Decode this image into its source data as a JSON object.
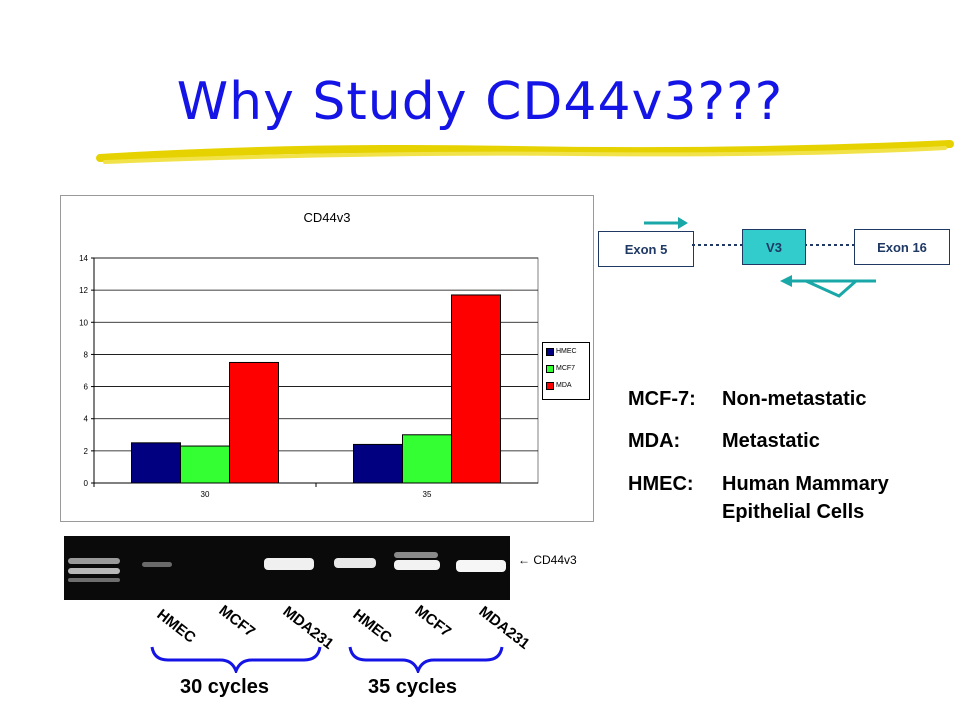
{
  "slide": {
    "title": "Why Study CD44v3???"
  },
  "chart_data": {
    "type": "bar",
    "title": "CD44v3",
    "categories": [
      "30",
      "35"
    ],
    "series": [
      {
        "name": "HMEC",
        "values": [
          2.5,
          2.4
        ],
        "color": "#000080"
      },
      {
        "name": "MCF7",
        "values": [
          2.3,
          3.0
        ],
        "color": "#33ff33"
      },
      {
        "name": "MDA",
        "values": [
          7.5,
          11.7
        ],
        "color": "#ff0000"
      }
    ],
    "ylim": [
      0,
      14
    ],
    "yticks": [
      "0",
      "2",
      "4",
      "6",
      "8",
      "10",
      "12",
      "14"
    ],
    "grid": true,
    "legend": "right"
  },
  "diagram": {
    "exon5": "Exon 5",
    "v3": "V3",
    "exon16": "Exon 16"
  },
  "key": [
    {
      "term": "MCF-7:",
      "desc": "Non-metastatic"
    },
    {
      "term": "MDA:",
      "desc": "Metastatic"
    },
    {
      "term": "HMEC:",
      "desc": "Human Mammary"
    },
    {
      "term": "",
      "desc": "Epithelial Cells"
    }
  ],
  "gel": {
    "marker": "← CD44v3",
    "lanes": [
      "HMEC",
      "MCF7",
      "MDA231",
      "HMEC",
      "MCF7",
      "MDA231"
    ],
    "groups": [
      "30 cycles",
      "35 cycles"
    ]
  }
}
